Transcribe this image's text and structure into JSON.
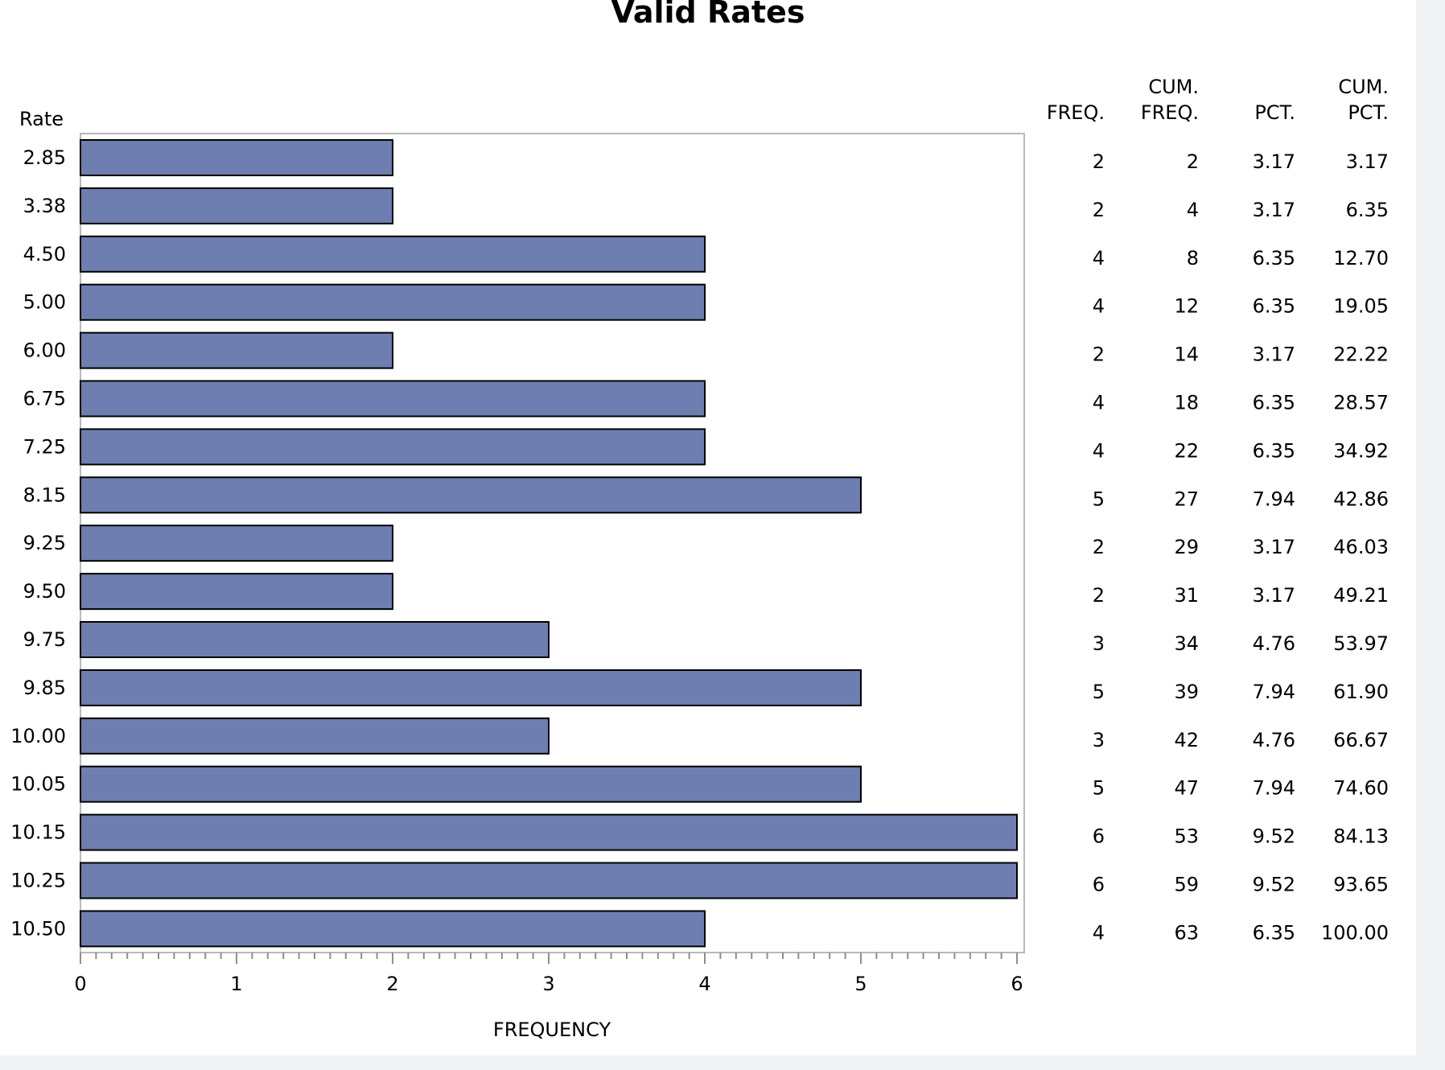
{
  "chart_data": {
    "type": "bar",
    "orientation": "horizontal",
    "title": "Valid Rates",
    "xlabel": "FREQUENCY",
    "ylabel": "Rate",
    "xlim": [
      0,
      6
    ],
    "xticks": [
      "0",
      "1",
      "2",
      "3",
      "4",
      "5",
      "6"
    ],
    "grid": false,
    "categories": [
      "2.85",
      "3.38",
      "4.50",
      "5.00",
      "6.00",
      "6.75",
      "7.25",
      "8.15",
      "9.25",
      "9.50",
      "9.75",
      "9.85",
      "10.00",
      "10.05",
      "10.15",
      "10.25",
      "10.50"
    ],
    "values": [
      2,
      2,
      4,
      4,
      2,
      4,
      4,
      5,
      2,
      2,
      3,
      5,
      3,
      5,
      6,
      6,
      4
    ],
    "bar_color": "#6f7eb0",
    "table": {
      "headers": [
        {
          "top": "",
          "bottom": "FREQ."
        },
        {
          "top": "CUM.",
          "bottom": "FREQ."
        },
        {
          "top": "",
          "bottom": "PCT."
        },
        {
          "top": "CUM.",
          "bottom": "PCT."
        }
      ],
      "rows": [
        [
          "2",
          "2",
          "3.17",
          "3.17"
        ],
        [
          "2",
          "4",
          "3.17",
          "6.35"
        ],
        [
          "4",
          "8",
          "6.35",
          "12.70"
        ],
        [
          "4",
          "12",
          "6.35",
          "19.05"
        ],
        [
          "2",
          "14",
          "3.17",
          "22.22"
        ],
        [
          "4",
          "18",
          "6.35",
          "28.57"
        ],
        [
          "4",
          "22",
          "6.35",
          "34.92"
        ],
        [
          "5",
          "27",
          "7.94",
          "42.86"
        ],
        [
          "2",
          "29",
          "3.17",
          "46.03"
        ],
        [
          "2",
          "31",
          "3.17",
          "49.21"
        ],
        [
          "3",
          "34",
          "4.76",
          "53.97"
        ],
        [
          "5",
          "39",
          "7.94",
          "61.90"
        ],
        [
          "3",
          "42",
          "4.76",
          "66.67"
        ],
        [
          "5",
          "47",
          "7.94",
          "74.60"
        ],
        [
          "6",
          "53",
          "9.52",
          "84.13"
        ],
        [
          "6",
          "59",
          "9.52",
          "93.65"
        ],
        [
          "4",
          "63",
          "6.35",
          "100.00"
        ]
      ]
    }
  }
}
